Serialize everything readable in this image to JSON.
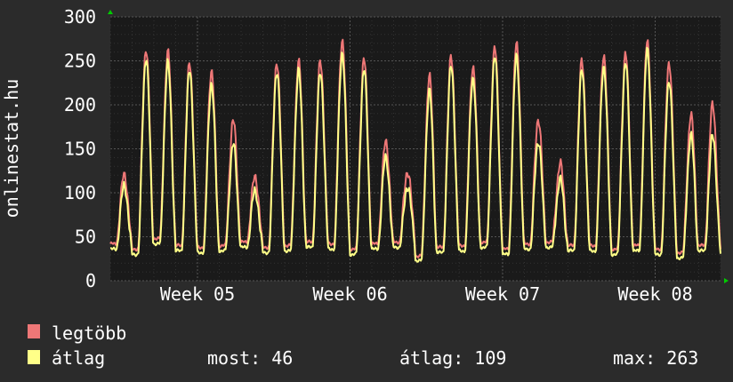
{
  "chart_data": {
    "type": "line",
    "ylabel": "onlinestat.hu",
    "ylim": [
      0,
      300
    ],
    "yticks": [
      0,
      50,
      100,
      150,
      200,
      250,
      300
    ],
    "xlim_days": [
      0,
      28
    ],
    "x_ticks": [
      {
        "label": "Week 05",
        "day": 4
      },
      {
        "label": "Week 06",
        "day": 11
      },
      {
        "label": "Week 07",
        "day": 18
      },
      {
        "label": "Week 08",
        "day": 25
      }
    ],
    "grid": true,
    "background_color": "#2b2b2b",
    "plot_background_color": "#1a1a1a",
    "grid_color": "#3a3a3a",
    "axis_arrow_color": "#00cc00",
    "text_color": "#ffffff",
    "series": [
      {
        "name": "legtöbb",
        "color": "#ee7777",
        "daily_peaks": [
          121,
          265,
          259,
          248,
          240,
          182,
          118,
          250,
          248,
          250,
          275,
          252,
          158,
          125,
          232,
          255,
          245,
          265,
          270,
          185,
          133,
          250,
          258,
          258,
          272,
          250,
          188,
          200,
          115,
          245
        ],
        "night_mins": [
          42,
          36,
          48,
          40,
          38,
          40,
          44,
          38,
          40,
          44,
          42,
          36,
          42,
          44,
          28,
          38,
          40,
          44,
          36,
          42,
          44,
          40,
          40,
          36,
          40,
          36,
          32,
          40,
          36,
          42
        ]
      },
      {
        "name": "átlag",
        "color": "#ffff88",
        "daily_peaks": [
          108,
          255,
          247,
          240,
          225,
          155,
          102,
          240,
          238,
          237,
          260,
          240,
          140,
          108,
          215,
          245,
          232,
          255,
          255,
          160,
          115,
          240,
          245,
          248,
          262,
          230,
          165,
          165,
          100,
          235
        ],
        "night_mins": [
          36,
          30,
          42,
          34,
          32,
          34,
          38,
          32,
          34,
          38,
          36,
          30,
          36,
          38,
          23,
          32,
          34,
          38,
          30,
          36,
          38,
          34,
          34,
          30,
          34,
          30,
          26,
          34,
          30,
          36
        ]
      }
    ]
  },
  "legend": [
    {
      "label": "legtöbb",
      "color": "#ee7777"
    },
    {
      "label": "átlag",
      "color": "#ffff88"
    }
  ],
  "stats": {
    "most": "most: 46",
    "atlag": "átlag: 109",
    "max": "max: 263"
  }
}
